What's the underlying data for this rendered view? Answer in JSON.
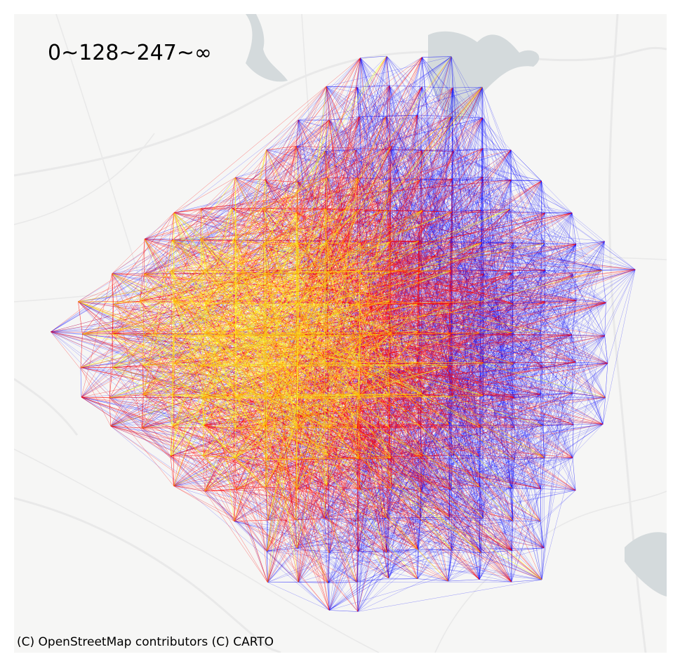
{
  "legend": {
    "title": "0~128~247~∞"
  },
  "attribution": "(C) OpenStreetMap contributors (C) CARTO",
  "flow_classes": [
    {
      "range": "0~128",
      "color": "#0000ff"
    },
    {
      "range": "128~247",
      "color": "#ff0000"
    },
    {
      "range": "247~∞",
      "color": "#ffff00"
    }
  ],
  "colors": {
    "basemap_land": "#f6f6f5",
    "basemap_water": "#d4dadc",
    "basemap_roads": "#e9e9e9"
  }
}
